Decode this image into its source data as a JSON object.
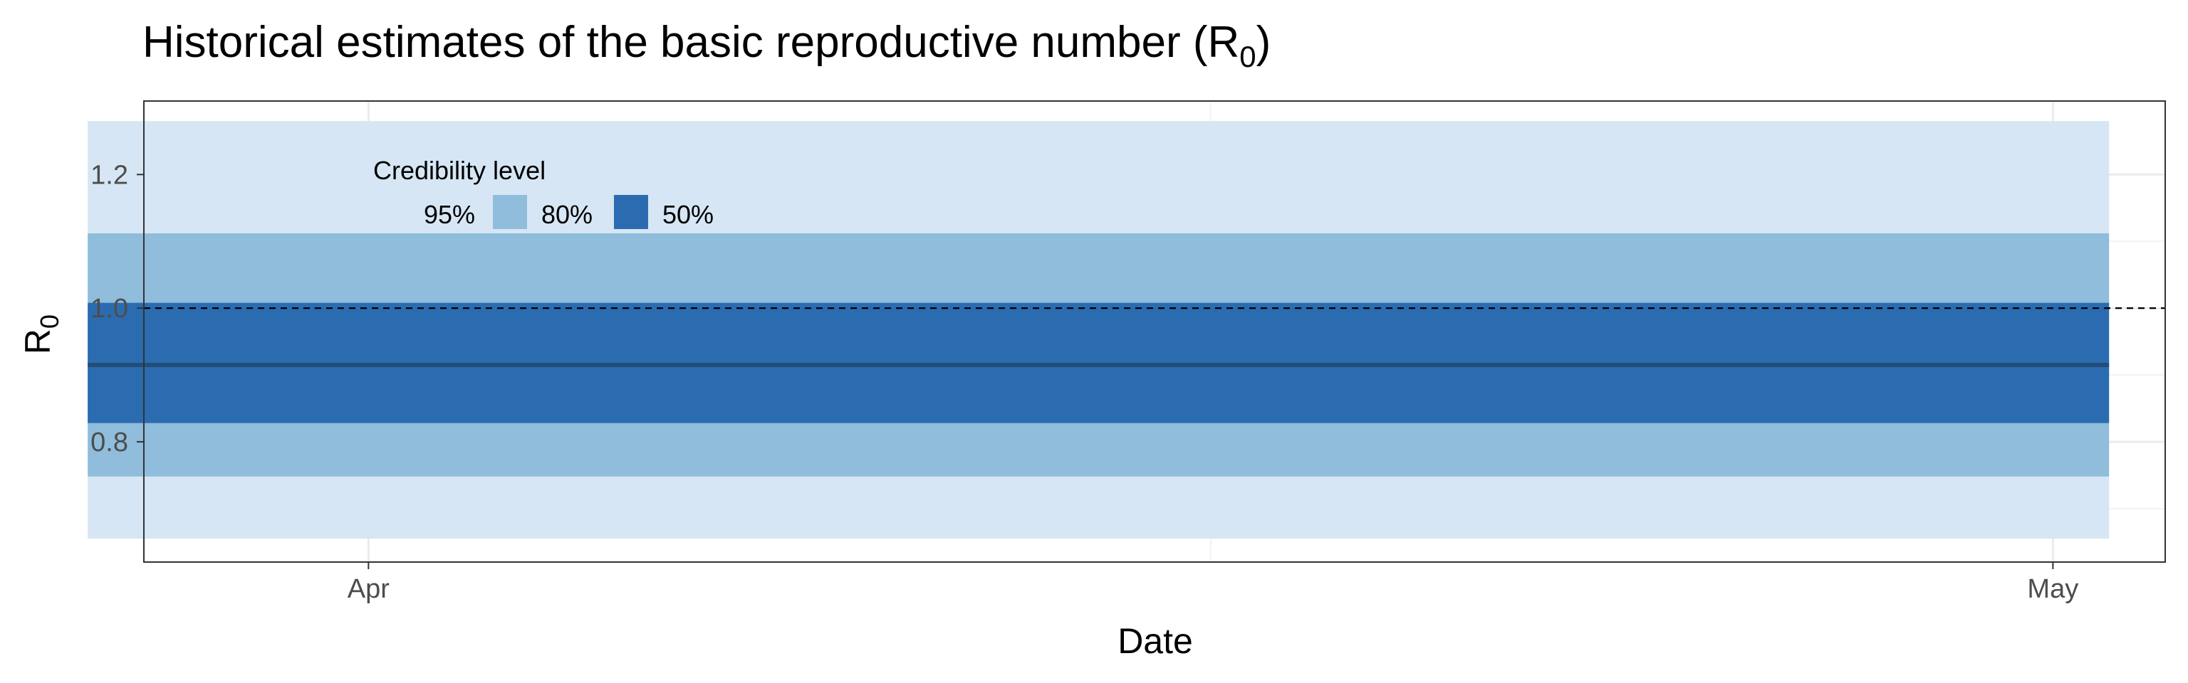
{
  "chart_data": {
    "type": "area",
    "title": "Historical estimates of the basic reproductive number (R",
    "title_subscript": "0",
    "title_suffix": ")",
    "xlabel": "Date",
    "ylabel": "R",
    "ylabel_subscript": "0",
    "x_range": [
      "2020-03-28",
      "2020-05-03"
    ],
    "x": [
      "2020-03-27",
      "2020-05-02"
    ],
    "median": [
      0.915,
      0.915
    ],
    "bands": [
      {
        "name": "95%",
        "lower": [
          0.655,
          0.655
        ],
        "upper": [
          1.28,
          1.28
        ],
        "color": "#d6e6f4"
      },
      {
        "name": "80%",
        "lower": [
          0.748,
          0.748
        ],
        "upper": [
          1.112,
          1.112
        ],
        "color": "#8fbddb"
      },
      {
        "name": "50%",
        "lower": [
          0.828,
          0.828
        ],
        "upper": [
          1.008,
          1.008
        ],
        "color": "#2b6cb0"
      }
    ],
    "median_color": "#234e78",
    "reference_line": {
      "y": 1.0,
      "style": "dashed"
    },
    "ylim": [
      0.62,
      1.31
    ],
    "yticks": [
      {
        "value": 0.8,
        "label": "0.8"
      },
      {
        "value": 1.0,
        "label": "1.0"
      },
      {
        "value": 1.2,
        "label": "1.2"
      }
    ],
    "xticks": [
      {
        "date": "2020-04-01",
        "label": "Apr"
      },
      {
        "date": "2020-05-01",
        "label": "May"
      }
    ],
    "grid": true,
    "legend": {
      "title": "Credibility level",
      "entries": [
        "95%",
        "80%",
        "50%"
      ],
      "placement": "top-left inside"
    }
  }
}
